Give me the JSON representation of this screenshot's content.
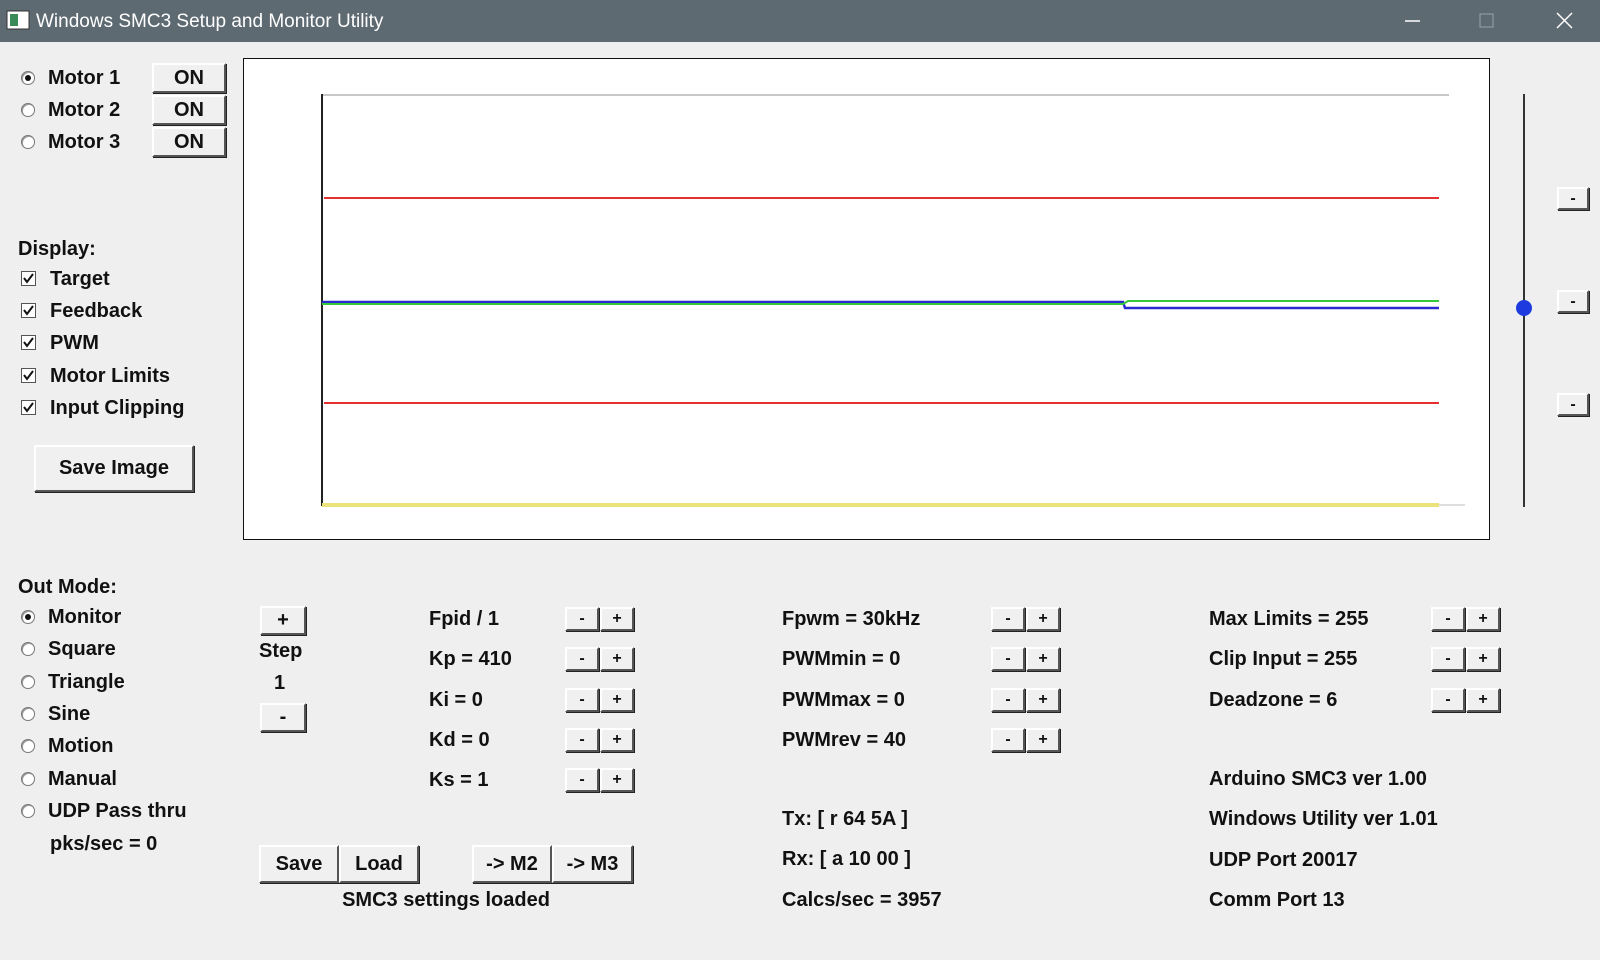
{
  "window": {
    "title": "Windows SMC3 Setup and Monitor Utility"
  },
  "motors": {
    "selected": 0,
    "items": [
      {
        "label": "Motor 1",
        "button": "ON"
      },
      {
        "label": "Motor 2",
        "button": "ON"
      },
      {
        "label": "Motor 3",
        "button": "ON"
      }
    ]
  },
  "display": {
    "label": "Display:",
    "options": [
      {
        "label": "Target",
        "checked": true
      },
      {
        "label": "Feedback",
        "checked": true
      },
      {
        "label": "PWM",
        "checked": true
      },
      {
        "label": "Motor Limits",
        "checked": true
      },
      {
        "label": "Input Clipping",
        "checked": true
      }
    ]
  },
  "save_image": "Save Image",
  "out_mode": {
    "label": "Out Mode:",
    "selected": 0,
    "options": [
      "Monitor",
      "Square",
      "Triangle",
      "Sine",
      "Motion",
      "Manual",
      "UDP Pass thru"
    ],
    "pks": "pks/sec = 0"
  },
  "step": {
    "plus": "+",
    "label": "Step",
    "value": 1,
    "minus": "-"
  },
  "adjust": {
    "minus": "-",
    "plus": "+"
  },
  "pid_params": [
    "Fpid / 1",
    "Kp = 410",
    "Ki = 0",
    "Kd = 0",
    "Ks = 1"
  ],
  "pwm_params": [
    "Fpwm = 30kHz",
    "PWMmin = 0",
    "PWMmax = 0",
    "PWMrev = 40"
  ],
  "limit_params": [
    "Max Limits = 255",
    "Clip Input = 255",
    "Deadzone = 6"
  ],
  "buttons": {
    "save": "Save",
    "load": "Load",
    "to_m2": "-> M2",
    "to_m3": "-> M3"
  },
  "status": "SMC3 settings loaded",
  "comms": [
    "Tx: [ r 64 5A ]",
    "Rx: [ a 10 00 ]",
    "Calcs/sec = 3957"
  ],
  "info": [
    "Arduino SMC3 ver 1.00",
    "Windows Utility ver 1.01",
    "UDP Port 20017",
    "Comm Port 13"
  ]
}
